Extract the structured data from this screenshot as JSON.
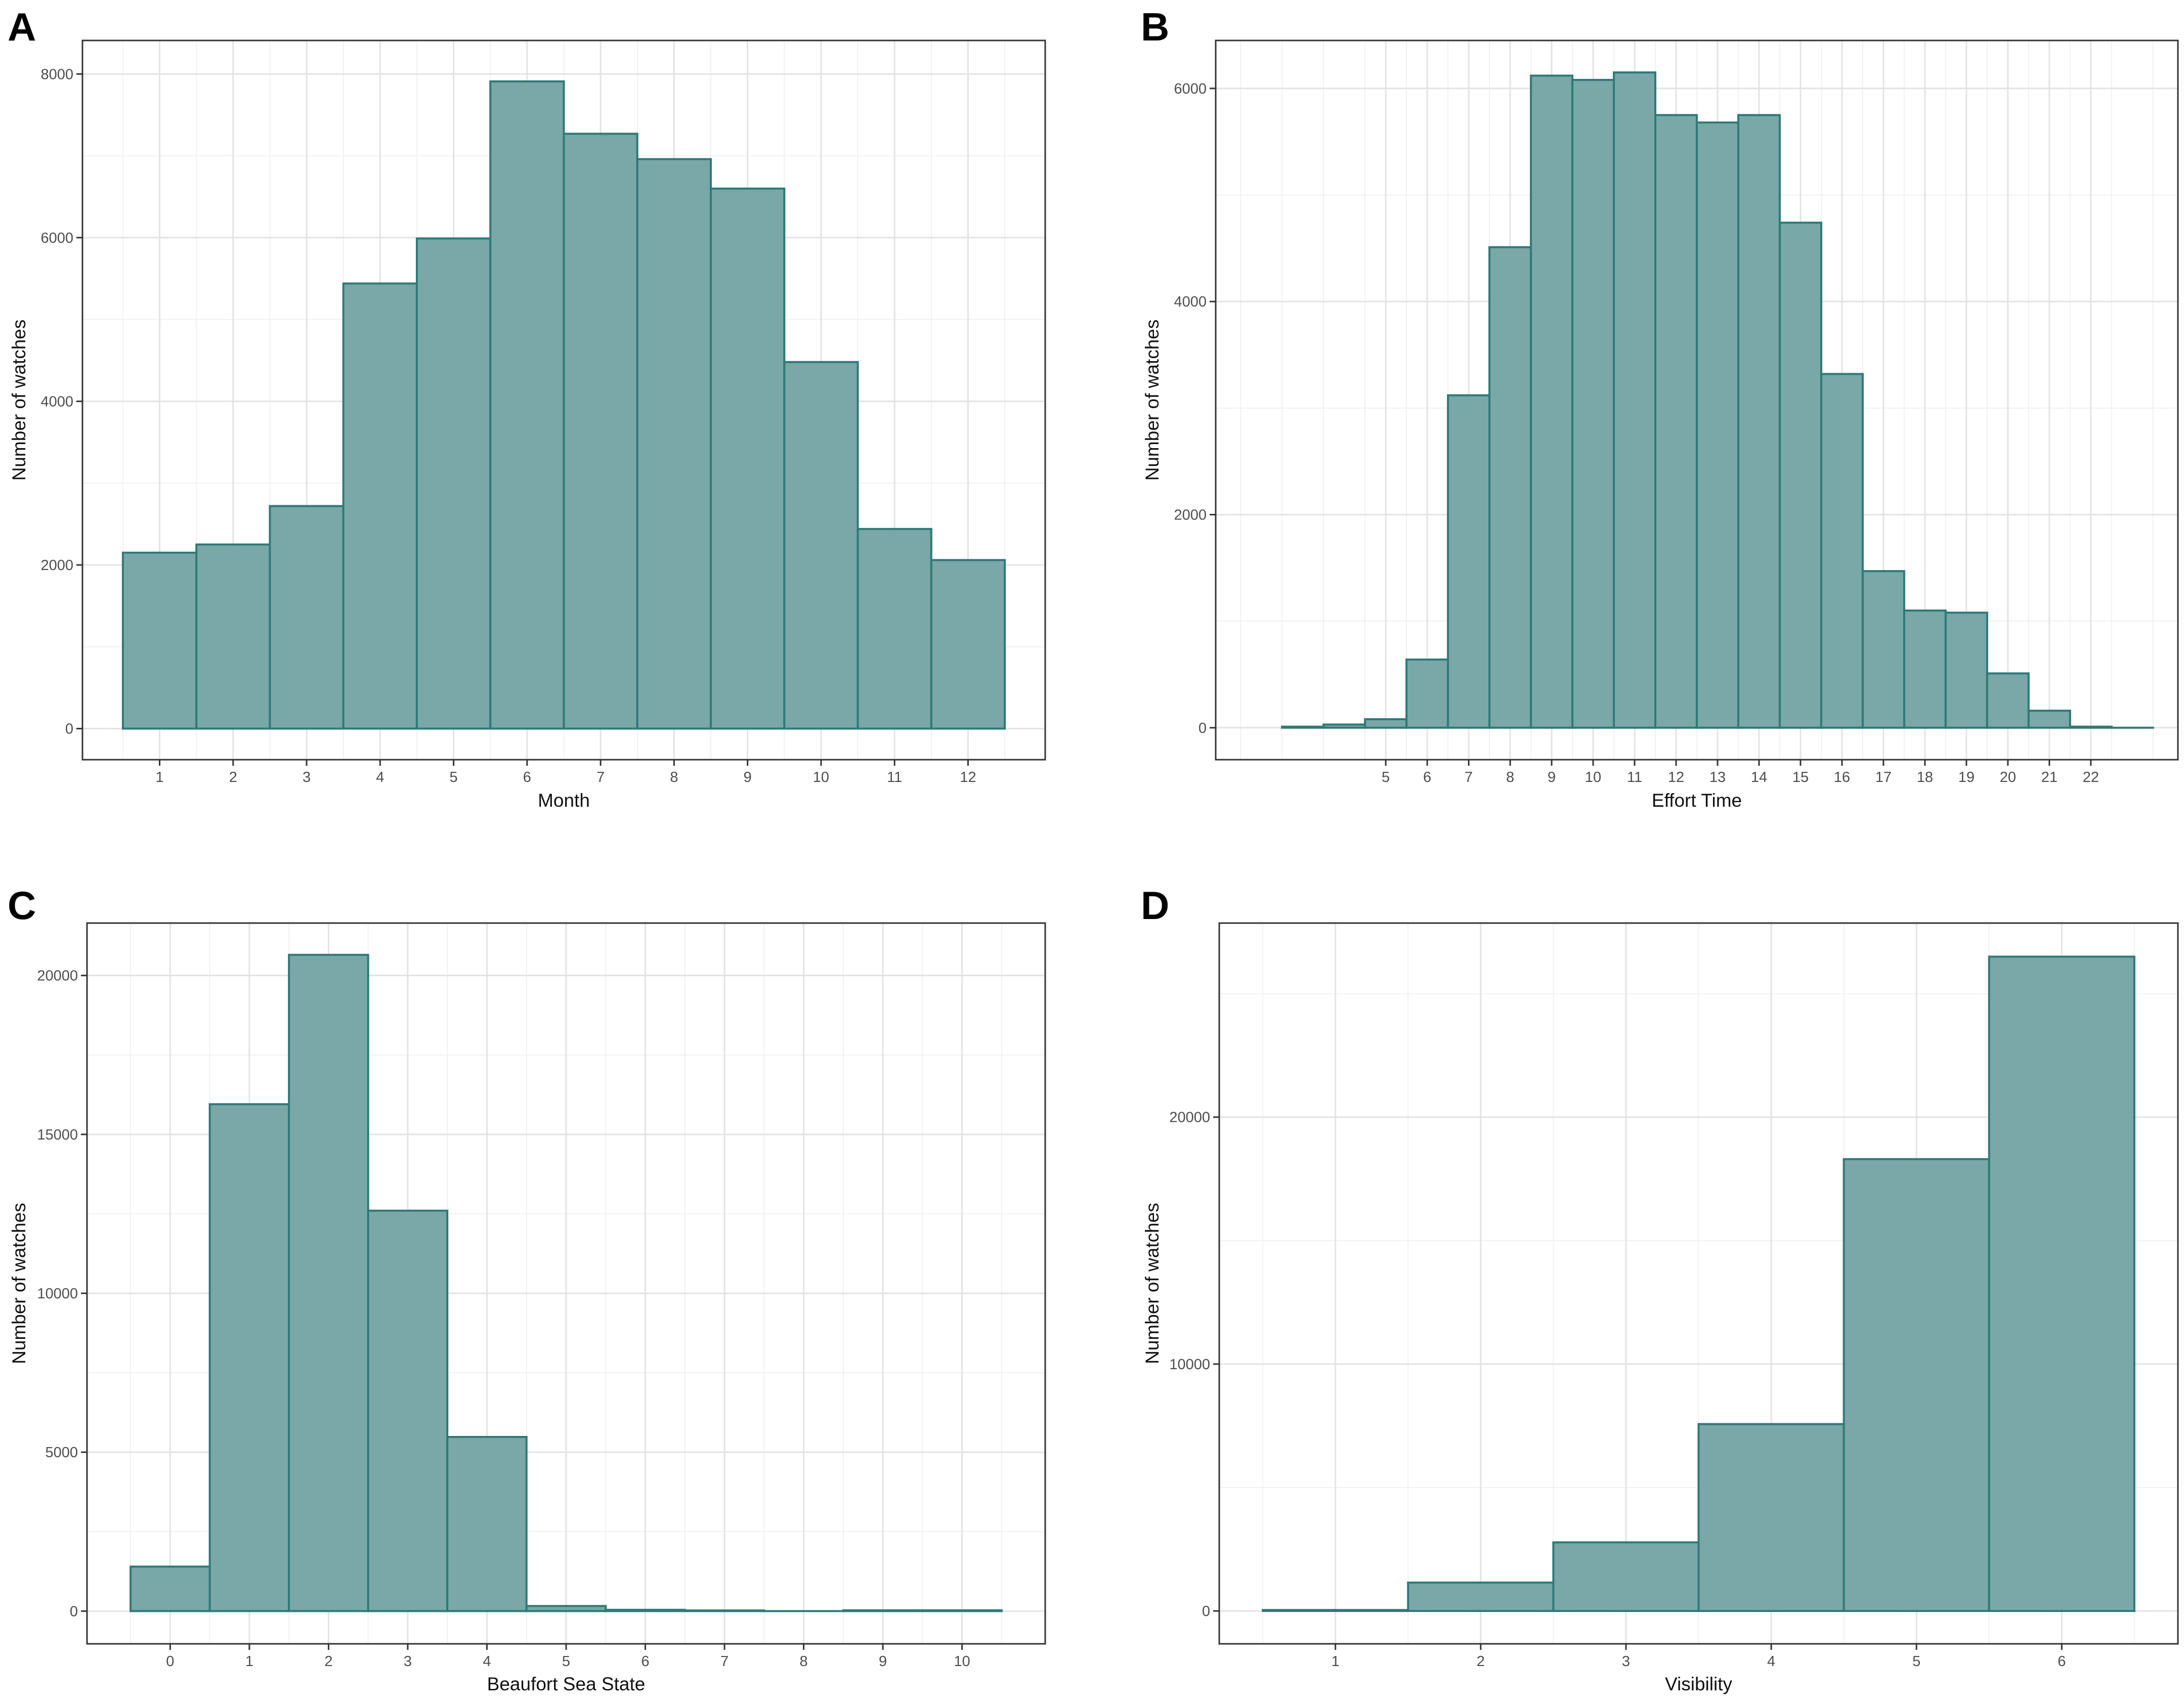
{
  "style": {
    "bar_fill": "#7aa7a7",
    "bar_stroke": "#2e7a78",
    "grid_major": "#e3e3e3",
    "grid_minor": "#f1f1f1",
    "panel_border": "#333333",
    "tick_color": "#333333",
    "tick_label_color": "#4d4d4d"
  },
  "chart_data": [
    {
      "id": "A",
      "panel_label": "A",
      "type": "bar",
      "xlabel": "Month",
      "ylabel": "Number of watches",
      "xlim": [
        -0.05,
        13.05
      ],
      "ylim": [
        -380,
        8410
      ],
      "x_ticks": [
        1,
        2,
        3,
        4,
        5,
        6,
        7,
        8,
        9,
        10,
        11,
        12
      ],
      "y_ticks": [
        0,
        2000,
        4000,
        6000,
        8000
      ],
      "categories": [
        1,
        2,
        3,
        4,
        5,
        6,
        7,
        8,
        9,
        10,
        11,
        12
      ],
      "values": [
        2150,
        2250,
        2720,
        5440,
        5990,
        7910,
        7270,
        6960,
        6600,
        4480,
        2440,
        2060
      ]
    },
    {
      "id": "B",
      "panel_label": "B",
      "type": "bar",
      "xlabel": "Effort Time",
      "ylabel": "Number of watches",
      "xlim": [
        0.9,
        24.1
      ],
      "ylim": [
        -300,
        6450
      ],
      "x_ticks": [
        5,
        6,
        7,
        8,
        9,
        10,
        11,
        12,
        13,
        14,
        15,
        16,
        17,
        18,
        19,
        20,
        21,
        22
      ],
      "y_ticks": [
        0,
        2000,
        4000,
        6000
      ],
      "categories": [
        3,
        4,
        5,
        6,
        7,
        8,
        9,
        10,
        11,
        12,
        13,
        14,
        15,
        16,
        17,
        18,
        19,
        20,
        21,
        22,
        23
      ],
      "values": [
        10,
        30,
        80,
        640,
        3120,
        4510,
        6120,
        6080,
        6150,
        5750,
        5680,
        5750,
        4740,
        3320,
        1470,
        1100,
        1080,
        510,
        160,
        10,
        0
      ]
    },
    {
      "id": "C",
      "panel_label": "C",
      "type": "bar",
      "xlabel": "Beaufort Sea State",
      "ylabel": "Number of watches",
      "xlim": [
        -1.05,
        11.05
      ],
      "ylim": [
        -1030,
        21650
      ],
      "x_ticks": [
        0,
        1,
        2,
        3,
        4,
        5,
        6,
        7,
        8,
        9,
        10
      ],
      "y_ticks": [
        0,
        5000,
        10000,
        15000,
        20000
      ],
      "categories": [
        0,
        1,
        2,
        3,
        4,
        5,
        6,
        7,
        8,
        9,
        10
      ],
      "values": [
        1400,
        15950,
        20650,
        12600,
        5480,
        160,
        40,
        20,
        0,
        25,
        25
      ]
    },
    {
      "id": "D",
      "panel_label": "D",
      "type": "bar",
      "xlabel": "Visibility",
      "ylabel": "Number of watches",
      "xlim": [
        0.2,
        6.8
      ],
      "ylim": [
        -1330,
        27860
      ],
      "x_ticks": [
        1,
        2,
        3,
        4,
        5,
        6
      ],
      "y_ticks": [
        0,
        10000,
        20000
      ],
      "categories": [
        1,
        2,
        3,
        4,
        5,
        6
      ],
      "values": [
        40,
        1150,
        2780,
        7570,
        18300,
        26500
      ]
    }
  ]
}
